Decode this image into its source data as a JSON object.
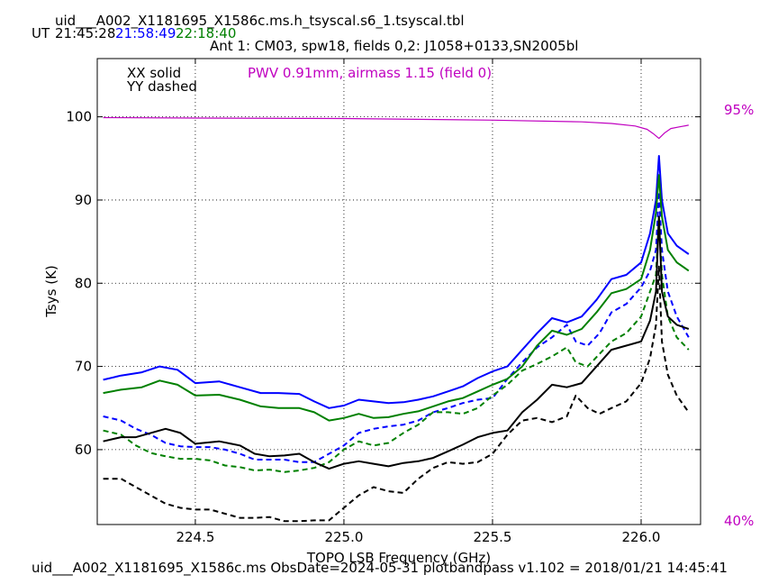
{
  "header": {
    "title": "uid___A002_X1181695_X1586c.ms.h_tsyscal.s6_1.tsyscal.tbl",
    "ut_label": "UT",
    "times": [
      {
        "text": "21:45:28",
        "color": "#000000"
      },
      {
        "text": "21:58:49",
        "color": "#0000ff"
      },
      {
        "text": "22:18:40",
        "color": "#008000"
      }
    ],
    "subtitle": "Ant 1: CM03,  spw18,  fields 0,2: J1058+0133,SN2005bl"
  },
  "footer": {
    "text": "uid___A002_X1181695_X1586c.ms  ObsDate=2024-05-31   plotbandpass v1.102 = 2018/01/21 14:45:41"
  },
  "legend": {
    "xx": "XX solid",
    "yy": "YY dashed",
    "pwv": "PWV 0.91mm, airmass 1.15 (field 0)",
    "pwv_color": "#c000c0"
  },
  "chart_data": {
    "type": "line",
    "xlabel": "TOPO LSB Frequency (GHz)",
    "ylabel": "Tsys (K)",
    "xlim": [
      224.17,
      226.2
    ],
    "ylim": [
      51,
      107
    ],
    "xticks": [
      "224.5",
      "225.0",
      "225.5",
      "226.0"
    ],
    "xtick_values": [
      224.5,
      225.0,
      225.5,
      226.0
    ],
    "yticks": [
      "60",
      "70",
      "80",
      "90",
      "100"
    ],
    "ytick_values": [
      60,
      70,
      80,
      90,
      100
    ],
    "grid": true,
    "right_axis_labels": {
      "top": "95%",
      "bottom": "40%",
      "color": "#c000c0"
    },
    "series": [
      {
        "color": "#0000ff",
        "dash": false,
        "points": [
          [
            224.19,
            68.4
          ],
          [
            224.25,
            68.9
          ],
          [
            224.32,
            69.3
          ],
          [
            224.38,
            70.0
          ],
          [
            224.44,
            69.6
          ],
          [
            224.5,
            68.0
          ],
          [
            224.58,
            68.2
          ],
          [
            224.65,
            67.5
          ],
          [
            224.72,
            66.8
          ],
          [
            224.78,
            66.8
          ],
          [
            224.85,
            66.7
          ],
          [
            224.9,
            65.8
          ],
          [
            224.95,
            65.0
          ],
          [
            225.0,
            65.3
          ],
          [
            225.05,
            66.0
          ],
          [
            225.1,
            65.8
          ],
          [
            225.15,
            65.6
          ],
          [
            225.2,
            65.7
          ],
          [
            225.25,
            66.0
          ],
          [
            225.3,
            66.4
          ],
          [
            225.35,
            67.0
          ],
          [
            225.4,
            67.6
          ],
          [
            225.45,
            68.6
          ],
          [
            225.5,
            69.4
          ],
          [
            225.55,
            70.0
          ],
          [
            225.6,
            72.0
          ],
          [
            225.65,
            74.0
          ],
          [
            225.7,
            75.8
          ],
          [
            225.75,
            75.3
          ],
          [
            225.8,
            76.0
          ],
          [
            225.85,
            78.0
          ],
          [
            225.9,
            80.5
          ],
          [
            225.95,
            81.0
          ],
          [
            226.0,
            82.5
          ],
          [
            226.03,
            86.0
          ],
          [
            226.05,
            90.0
          ],
          [
            226.06,
            95.3
          ],
          [
            226.07,
            90.0
          ],
          [
            226.09,
            86.0
          ],
          [
            226.12,
            84.5
          ],
          [
            226.16,
            83.5
          ]
        ]
      },
      {
        "color": "#0000ff",
        "dash": true,
        "points": [
          [
            224.19,
            64.0
          ],
          [
            224.25,
            63.5
          ],
          [
            224.3,
            62.5
          ],
          [
            224.35,
            61.8
          ],
          [
            224.4,
            60.8
          ],
          [
            224.45,
            60.4
          ],
          [
            224.5,
            60.3
          ],
          [
            224.55,
            60.3
          ],
          [
            224.6,
            60.0
          ],
          [
            224.65,
            59.5
          ],
          [
            224.7,
            58.8
          ],
          [
            224.75,
            58.8
          ],
          [
            224.8,
            58.8
          ],
          [
            224.85,
            58.5
          ],
          [
            224.9,
            58.5
          ],
          [
            224.95,
            59.5
          ],
          [
            225.0,
            60.5
          ],
          [
            225.05,
            62.0
          ],
          [
            225.1,
            62.5
          ],
          [
            225.15,
            62.8
          ],
          [
            225.2,
            63.0
          ],
          [
            225.25,
            63.5
          ],
          [
            225.3,
            64.5
          ],
          [
            225.35,
            65.0
          ],
          [
            225.4,
            65.6
          ],
          [
            225.45,
            66.0
          ],
          [
            225.5,
            66.2
          ],
          [
            225.55,
            68.5
          ],
          [
            225.6,
            70.5
          ],
          [
            225.65,
            72.3
          ],
          [
            225.7,
            73.5
          ],
          [
            225.75,
            75.0
          ],
          [
            225.78,
            73.0
          ],
          [
            225.82,
            72.5
          ],
          [
            225.86,
            74.0
          ],
          [
            225.9,
            76.5
          ],
          [
            225.95,
            77.5
          ],
          [
            226.0,
            79.5
          ],
          [
            226.03,
            81.5
          ],
          [
            226.05,
            84.0
          ],
          [
            226.06,
            91.0
          ],
          [
            226.07,
            84.0
          ],
          [
            226.09,
            79.0
          ],
          [
            226.12,
            76.0
          ],
          [
            226.16,
            73.5
          ]
        ]
      },
      {
        "color": "#008000",
        "dash": false,
        "points": [
          [
            224.19,
            66.8
          ],
          [
            224.25,
            67.2
          ],
          [
            224.32,
            67.5
          ],
          [
            224.38,
            68.3
          ],
          [
            224.44,
            67.8
          ],
          [
            224.5,
            66.5
          ],
          [
            224.58,
            66.6
          ],
          [
            224.65,
            66.0
          ],
          [
            224.72,
            65.2
          ],
          [
            224.78,
            65.0
          ],
          [
            224.85,
            65.0
          ],
          [
            224.9,
            64.5
          ],
          [
            224.95,
            63.5
          ],
          [
            225.0,
            63.8
          ],
          [
            225.05,
            64.3
          ],
          [
            225.1,
            63.8
          ],
          [
            225.15,
            63.9
          ],
          [
            225.2,
            64.3
          ],
          [
            225.25,
            64.6
          ],
          [
            225.3,
            65.2
          ],
          [
            225.35,
            65.8
          ],
          [
            225.4,
            66.2
          ],
          [
            225.45,
            67.0
          ],
          [
            225.5,
            67.8
          ],
          [
            225.55,
            68.5
          ],
          [
            225.6,
            70.0
          ],
          [
            225.65,
            72.5
          ],
          [
            225.7,
            74.3
          ],
          [
            225.75,
            73.8
          ],
          [
            225.8,
            74.5
          ],
          [
            225.85,
            76.5
          ],
          [
            225.9,
            78.8
          ],
          [
            225.95,
            79.3
          ],
          [
            226.0,
            80.5
          ],
          [
            226.03,
            84.0
          ],
          [
            226.05,
            88.5
          ],
          [
            226.06,
            93.0
          ],
          [
            226.07,
            88.0
          ],
          [
            226.09,
            84.0
          ],
          [
            226.12,
            82.5
          ],
          [
            226.16,
            81.5
          ]
        ]
      },
      {
        "color": "#008000",
        "dash": true,
        "points": [
          [
            224.19,
            62.3
          ],
          [
            224.25,
            61.8
          ],
          [
            224.3,
            60.5
          ],
          [
            224.35,
            59.6
          ],
          [
            224.4,
            59.2
          ],
          [
            224.45,
            58.9
          ],
          [
            224.5,
            58.9
          ],
          [
            224.55,
            58.7
          ],
          [
            224.6,
            58.1
          ],
          [
            224.65,
            57.9
          ],
          [
            224.7,
            57.5
          ],
          [
            224.75,
            57.6
          ],
          [
            224.8,
            57.3
          ],
          [
            224.85,
            57.5
          ],
          [
            224.9,
            57.8
          ],
          [
            224.95,
            58.5
          ],
          [
            225.0,
            60.0
          ],
          [
            225.05,
            61.0
          ],
          [
            225.1,
            60.5
          ],
          [
            225.15,
            60.8
          ],
          [
            225.2,
            62.0
          ],
          [
            225.25,
            63.0
          ],
          [
            225.3,
            64.5
          ],
          [
            225.35,
            64.5
          ],
          [
            225.4,
            64.3
          ],
          [
            225.45,
            65.0
          ],
          [
            225.5,
            66.5
          ],
          [
            225.55,
            67.8
          ],
          [
            225.6,
            69.5
          ],
          [
            225.65,
            70.3
          ],
          [
            225.7,
            71.2
          ],
          [
            225.75,
            72.3
          ],
          [
            225.78,
            70.5
          ],
          [
            225.82,
            70.0
          ],
          [
            225.86,
            71.5
          ],
          [
            225.9,
            73.0
          ],
          [
            225.95,
            74.0
          ],
          [
            226.0,
            76.0
          ],
          [
            226.03,
            79.0
          ],
          [
            226.05,
            81.0
          ],
          [
            226.06,
            88.0
          ],
          [
            226.07,
            81.0
          ],
          [
            226.09,
            76.0
          ],
          [
            226.12,
            73.5
          ],
          [
            226.16,
            72.0
          ]
        ]
      },
      {
        "color": "#000000",
        "dash": false,
        "points": [
          [
            224.19,
            61.0
          ],
          [
            224.25,
            61.5
          ],
          [
            224.3,
            61.5
          ],
          [
            224.35,
            62.0
          ],
          [
            224.4,
            62.5
          ],
          [
            224.45,
            62.0
          ],
          [
            224.5,
            60.7
          ],
          [
            224.58,
            61.0
          ],
          [
            224.65,
            60.5
          ],
          [
            224.7,
            59.5
          ],
          [
            224.75,
            59.2
          ],
          [
            224.8,
            59.3
          ],
          [
            224.85,
            59.5
          ],
          [
            224.9,
            58.5
          ],
          [
            224.95,
            57.7
          ],
          [
            225.0,
            58.3
          ],
          [
            225.05,
            58.6
          ],
          [
            225.1,
            58.3
          ],
          [
            225.15,
            58.0
          ],
          [
            225.2,
            58.4
          ],
          [
            225.25,
            58.6
          ],
          [
            225.3,
            59.0
          ],
          [
            225.35,
            59.8
          ],
          [
            225.4,
            60.6
          ],
          [
            225.45,
            61.5
          ],
          [
            225.5,
            62.0
          ],
          [
            225.55,
            62.3
          ],
          [
            225.6,
            64.5
          ],
          [
            225.65,
            66.0
          ],
          [
            225.7,
            67.8
          ],
          [
            225.75,
            67.5
          ],
          [
            225.8,
            68.0
          ],
          [
            225.85,
            70.0
          ],
          [
            225.9,
            72.0
          ],
          [
            225.95,
            72.5
          ],
          [
            226.0,
            73.0
          ],
          [
            226.03,
            75.5
          ],
          [
            226.05,
            79.0
          ],
          [
            226.06,
            88.0
          ],
          [
            226.07,
            79.0
          ],
          [
            226.09,
            76.0
          ],
          [
            226.12,
            75.0
          ],
          [
            226.16,
            74.5
          ]
        ]
      },
      {
        "color": "#000000",
        "dash": true,
        "points": [
          [
            224.19,
            56.5
          ],
          [
            224.25,
            56.5
          ],
          [
            224.3,
            55.5
          ],
          [
            224.35,
            54.5
          ],
          [
            224.4,
            53.5
          ],
          [
            224.45,
            53.0
          ],
          [
            224.5,
            52.8
          ],
          [
            224.55,
            52.8
          ],
          [
            224.6,
            52.3
          ],
          [
            224.65,
            51.8
          ],
          [
            224.7,
            51.8
          ],
          [
            224.75,
            51.9
          ],
          [
            224.8,
            51.4
          ],
          [
            224.85,
            51.4
          ],
          [
            224.9,
            51.5
          ],
          [
            224.95,
            51.5
          ],
          [
            225.0,
            53.0
          ],
          [
            225.05,
            54.5
          ],
          [
            225.1,
            55.5
          ],
          [
            225.15,
            55.0
          ],
          [
            225.2,
            54.8
          ],
          [
            225.25,
            56.5
          ],
          [
            225.3,
            57.8
          ],
          [
            225.35,
            58.5
          ],
          [
            225.4,
            58.3
          ],
          [
            225.45,
            58.5
          ],
          [
            225.5,
            59.5
          ],
          [
            225.55,
            61.8
          ],
          [
            225.6,
            63.5
          ],
          [
            225.65,
            63.8
          ],
          [
            225.7,
            63.3
          ],
          [
            225.75,
            64.0
          ],
          [
            225.78,
            66.5
          ],
          [
            225.82,
            65.0
          ],
          [
            225.86,
            64.3
          ],
          [
            225.9,
            65.0
          ],
          [
            225.95,
            65.8
          ],
          [
            226.0,
            68.0
          ],
          [
            226.03,
            71.0
          ],
          [
            226.05,
            75.0
          ],
          [
            226.06,
            82.0
          ],
          [
            226.07,
            73.0
          ],
          [
            226.09,
            69.0
          ],
          [
            226.12,
            66.5
          ],
          [
            226.16,
            64.5
          ]
        ]
      },
      {
        "color": "#c000c0",
        "dash": false,
        "points": [
          [
            224.19,
            99.9
          ],
          [
            224.5,
            99.85
          ],
          [
            225.0,
            99.8
          ],
          [
            225.5,
            99.6
          ],
          [
            225.8,
            99.4
          ],
          [
            225.9,
            99.2
          ],
          [
            225.98,
            98.9
          ],
          [
            226.02,
            98.5
          ],
          [
            226.04,
            98.0
          ],
          [
            226.06,
            97.4
          ],
          [
            226.08,
            98.1
          ],
          [
            226.1,
            98.6
          ],
          [
            226.13,
            98.8
          ],
          [
            226.16,
            99.0
          ]
        ]
      }
    ]
  }
}
